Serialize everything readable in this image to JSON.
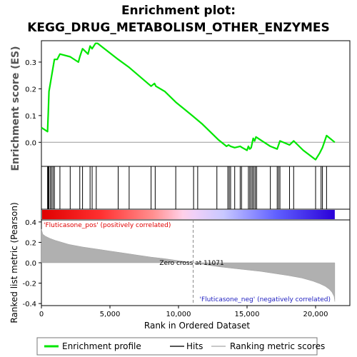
{
  "chart_data": {
    "type": "line",
    "title_line1": "Enrichment plot:",
    "title_line2": "KEGG_DRUG_METABOLISM_OTHER_ENZYMES",
    "enrichment": {
      "ylabel": "Enrichment score (ES)",
      "ylim": [
        -0.09,
        0.38
      ],
      "yticks": [
        0.0,
        0.1,
        0.2,
        0.3
      ],
      "ytick_labels": [
        "0.0",
        "0.1",
        "0.2",
        "0.3"
      ],
      "x": [
        0,
        450,
        500,
        550,
        650,
        750,
        850,
        950,
        1150,
        1350,
        2100,
        2700,
        2800,
        3000,
        3400,
        3550,
        3700,
        3950,
        4100,
        5600,
        6400,
        8000,
        8250,
        8350,
        9000,
        9800,
        11000,
        11700,
        12900,
        13500,
        13650,
        13800,
        14100,
        14500,
        14650,
        15000,
        15100,
        15200,
        15300,
        15450,
        15550,
        15650,
        16700,
        17200,
        17400,
        18100,
        18400,
        19100,
        20000,
        20300,
        20500,
        20800,
        21400
      ],
      "es": [
        0.055,
        0.04,
        0.11,
        0.19,
        0.22,
        0.25,
        0.28,
        0.31,
        0.31,
        0.33,
        0.32,
        0.3,
        0.32,
        0.35,
        0.33,
        0.36,
        0.35,
        0.37,
        0.37,
        0.31,
        0.28,
        0.21,
        0.22,
        0.21,
        0.19,
        0.15,
        0.1,
        0.07,
        0.01,
        -0.015,
        -0.01,
        -0.015,
        -0.02,
        -0.015,
        -0.02,
        -0.03,
        -0.015,
        -0.025,
        -0.02,
        0.015,
        0.005,
        0.02,
        -0.015,
        -0.025,
        0.005,
        -0.01,
        0.005,
        -0.03,
        -0.065,
        -0.04,
        -0.02,
        0.025,
        0.0
      ]
    },
    "hits": [
      450,
      500,
      550,
      650,
      750,
      850,
      950,
      1350,
      2100,
      2800,
      3000,
      3550,
      3700,
      4000,
      5600,
      6400,
      8000,
      8300,
      9800,
      11100,
      11400,
      12800,
      13600,
      13700,
      13800,
      14100,
      14500,
      14600,
      15100,
      15200,
      15300,
      15400,
      15500,
      15600,
      15700,
      16700,
      17200,
      17300,
      17400,
      18100,
      18400,
      20000,
      20400,
      20500,
      20800
    ],
    "ranking": {
      "ylabel": "Ranked list metric (Pearson)",
      "ylim": [
        -0.42,
        0.42
      ],
      "yticks": [
        0.4,
        0.2,
        0.0,
        -0.2,
        -0.4
      ],
      "ytick_labels": [
        "0.4",
        "0.2",
        "0.0",
        "-0.2",
        "-0.4"
      ],
      "x": [
        0,
        100,
        300,
        600,
        1000,
        2000,
        3000,
        4000,
        5000,
        6000,
        7000,
        8000,
        9000,
        10000,
        11071,
        12000,
        13000,
        14000,
        15000,
        16000,
        17000,
        18000,
        19000,
        19800,
        20300,
        20700,
        21000,
        21200,
        21350,
        21400
      ],
      "values": [
        0.33,
        0.28,
        0.26,
        0.24,
        0.22,
        0.18,
        0.155,
        0.135,
        0.115,
        0.095,
        0.075,
        0.055,
        0.04,
        0.02,
        0.0,
        -0.02,
        -0.04,
        -0.055,
        -0.07,
        -0.085,
        -0.105,
        -0.125,
        -0.15,
        -0.18,
        -0.205,
        -0.23,
        -0.26,
        -0.29,
        -0.33,
        -0.38
      ]
    },
    "xlabel": "Rank in Ordered Dataset",
    "xlim": [
      0,
      22500
    ],
    "xticks": [
      0,
      5000,
      10000,
      15000,
      20000
    ],
    "xtick_labels": [
      "0",
      "5,000",
      "10,000",
      "15,000",
      "20,000"
    ],
    "zero_cross": 11071,
    "zero_cross_label": "Zero cross at 11071",
    "pos_label": "'Fluticasone_pos' (positively correlated)",
    "neg_label": "'Fluticasone_neg' (negatively correlated)",
    "heat_max_rank": 21400,
    "legend": [
      {
        "label": "Enrichment profile",
        "color": "#00e600"
      },
      {
        "label": "Hits",
        "color": "#555555"
      },
      {
        "label": "Ranking metric scores",
        "color": "#c8c8c8"
      }
    ],
    "colors": {
      "es_line": "#00e600",
      "hit": "#000000",
      "ranking_fill": "#b0b0b0",
      "pos_label": "#e00000",
      "neg_label": "#2020c0"
    }
  }
}
